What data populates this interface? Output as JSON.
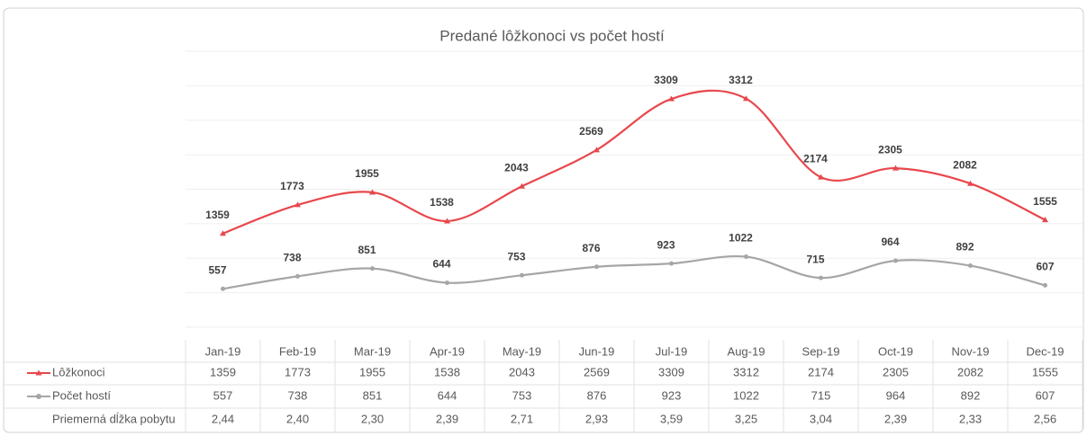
{
  "chart_data": {
    "type": "line",
    "title": "Predané lôžkonoci vs počet hostí",
    "categories": [
      "Jan-19",
      "Feb-19",
      "Mar-19",
      "Apr-19",
      "May-19",
      "Jun-19",
      "Jul-19",
      "Aug-19",
      "Sep-19",
      "Oct-19",
      "Nov-19",
      "Dec-19"
    ],
    "series": [
      {
        "name": "Lôžkonoci",
        "color": "#e8474c",
        "marker": "triangle",
        "values": [
          1359,
          1773,
          1955,
          1538,
          2043,
          2569,
          3309,
          3312,
          2174,
          2305,
          2082,
          1555
        ]
      },
      {
        "name": "Počet hostí",
        "color": "#a6a6a6",
        "marker": "circle",
        "values": [
          557,
          738,
          851,
          644,
          753,
          876,
          923,
          1022,
          715,
          964,
          892,
          607
        ]
      }
    ],
    "table": {
      "rows": [
        {
          "name": "Priemerná dĺžka pobytu",
          "values": [
            2.44,
            2.4,
            2.3,
            2.39,
            2.71,
            2.93,
            3.59,
            3.25,
            3.04,
            2.39,
            2.33,
            2.56
          ],
          "value_labels": [
            "2,44",
            "2,40",
            "2,30",
            "2,39",
            "2,71",
            "2,93",
            "3,59",
            "3,25",
            "3,04",
            "2,39",
            "2,33",
            "2,56"
          ]
        }
      ]
    },
    "ylim": [
      0,
      4000
    ],
    "yticks": [
      0,
      500,
      1000,
      1500,
      2000,
      2500,
      3000,
      3500,
      4000
    ],
    "grid": true,
    "smooth": true
  }
}
